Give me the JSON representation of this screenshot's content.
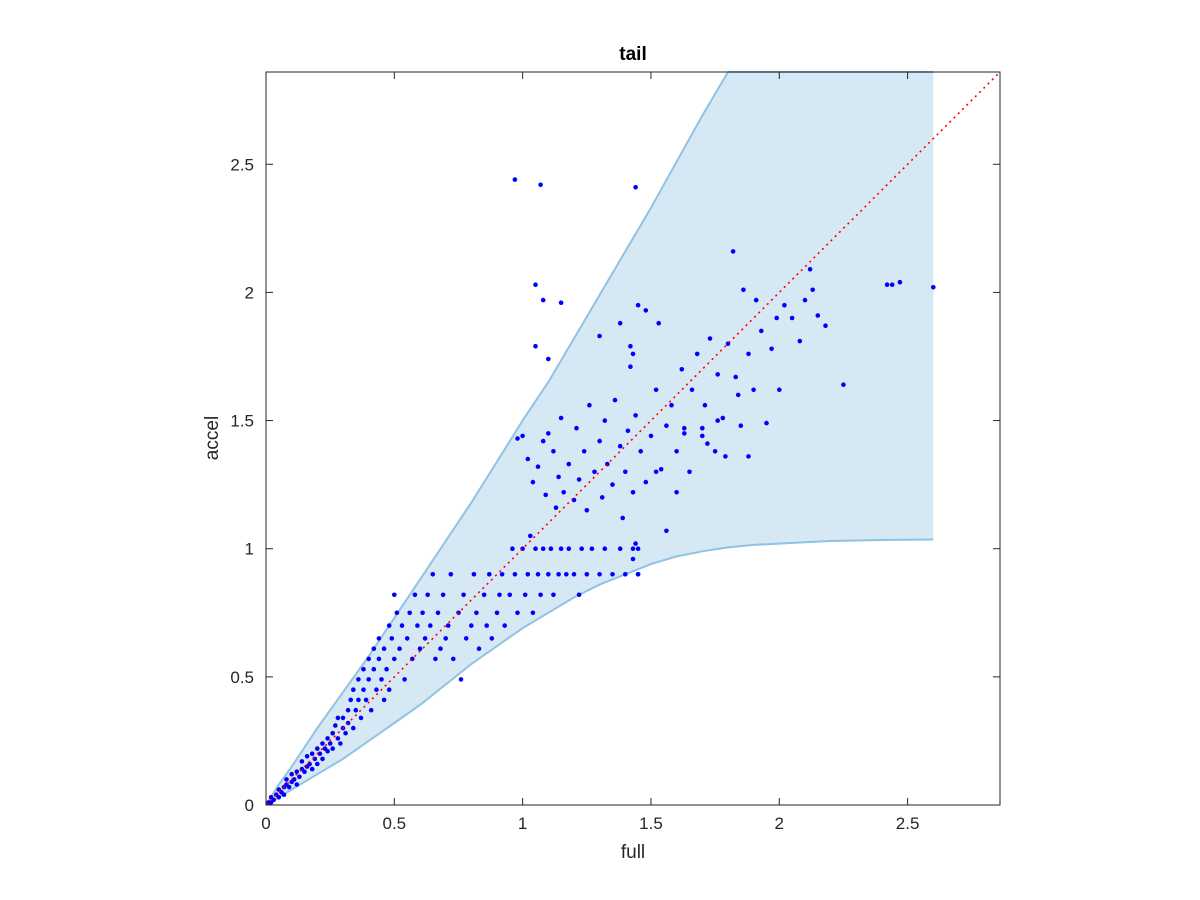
{
  "chart_data": {
    "type": "scatter",
    "title": "tail",
    "xlabel": "full",
    "ylabel": "accel",
    "xlim": [
      0,
      2.86
    ],
    "ylim": [
      0,
      2.86
    ],
    "xticks": [
      0,
      0.5,
      1,
      1.5,
      2,
      2.5
    ],
    "yticks": [
      0,
      0.5,
      1,
      1.5,
      2,
      2.5
    ],
    "xtick_labels": [
      "0",
      "0.5",
      "1",
      "1.5",
      "2",
      "2.5"
    ],
    "ytick_labels": [
      "0",
      "0.5",
      "1",
      "1.5",
      "2",
      "2.5"
    ],
    "grid": false,
    "colors": {
      "points": "#0000ff",
      "band_fill": "#d6e8f4",
      "band_edge": "#8fc3e3",
      "reference_line": "#ff0000",
      "axes": "#262626"
    },
    "band": {
      "x": [
        0,
        0.05,
        0.1,
        0.2,
        0.3,
        0.4,
        0.5,
        0.6,
        0.7,
        0.8,
        0.9,
        1.0,
        1.1,
        1.2,
        1.3,
        1.4,
        1.5,
        1.6,
        1.7,
        1.8,
        1.9,
        2.0,
        2.1,
        2.2,
        2.3,
        2.4,
        2.5,
        2.6
      ],
      "upper": [
        0,
        0.08,
        0.15,
        0.3,
        0.44,
        0.58,
        0.73,
        0.88,
        1.03,
        1.18,
        1.34,
        1.5,
        1.65,
        1.82,
        1.99,
        2.16,
        2.33,
        2.51,
        2.69,
        2.87,
        2.86,
        2.86,
        2.86,
        2.86,
        2.86,
        2.86,
        2.86,
        2.86
      ],
      "lower": [
        0,
        0.03,
        0.06,
        0.12,
        0.18,
        0.25,
        0.32,
        0.39,
        0.47,
        0.55,
        0.62,
        0.69,
        0.75,
        0.81,
        0.86,
        0.9,
        0.94,
        0.97,
        0.99,
        1.005,
        1.015,
        1.02,
        1.025,
        1.03,
        1.032,
        1.034,
        1.035,
        1.036
      ]
    },
    "reference_line": {
      "style": "dotted",
      "x": [
        0,
        2.86
      ],
      "y": [
        0,
        2.86
      ]
    },
    "series": [
      {
        "points": [
          [
            0.01,
            0.01
          ],
          [
            0.02,
            0.01
          ],
          [
            0.02,
            0.03
          ],
          [
            0.03,
            0.02
          ],
          [
            0.04,
            0.04
          ],
          [
            0.05,
            0.03
          ],
          [
            0.05,
            0.06
          ],
          [
            0.06,
            0.05
          ],
          [
            0.07,
            0.07
          ],
          [
            0.07,
            0.04
          ],
          [
            0.08,
            0.08
          ],
          [
            0.08,
            0.1
          ],
          [
            0.09,
            0.07
          ],
          [
            0.1,
            0.09
          ],
          [
            0.1,
            0.12
          ],
          [
            0.11,
            0.1
          ],
          [
            0.12,
            0.13
          ],
          [
            0.12,
            0.08
          ],
          [
            0.13,
            0.11
          ],
          [
            0.14,
            0.14
          ],
          [
            0.14,
            0.17
          ],
          [
            0.15,
            0.13
          ],
          [
            0.16,
            0.15
          ],
          [
            0.16,
            0.19
          ],
          [
            0.17,
            0.16
          ],
          [
            0.18,
            0.14
          ],
          [
            0.18,
            0.2
          ],
          [
            0.19,
            0.18
          ],
          [
            0.2,
            0.22
          ],
          [
            0.2,
            0.16
          ],
          [
            0.21,
            0.2
          ],
          [
            0.22,
            0.24
          ],
          [
            0.22,
            0.18
          ],
          [
            0.23,
            0.22
          ],
          [
            0.24,
            0.26
          ],
          [
            0.24,
            0.21
          ],
          [
            0.25,
            0.24
          ],
          [
            0.26,
            0.28
          ],
          [
            0.26,
            0.22
          ],
          [
            0.27,
            0.31
          ],
          [
            0.28,
            0.26
          ],
          [
            0.28,
            0.34
          ],
          [
            0.29,
            0.24
          ],
          [
            0.3,
            0.3
          ],
          [
            0.3,
            0.34
          ],
          [
            0.31,
            0.28
          ],
          [
            0.32,
            0.37
          ],
          [
            0.32,
            0.32
          ],
          [
            0.33,
            0.41
          ],
          [
            0.34,
            0.3
          ],
          [
            0.34,
            0.45
          ],
          [
            0.35,
            0.37
          ],
          [
            0.36,
            0.41
          ],
          [
            0.36,
            0.49
          ],
          [
            0.37,
            0.34
          ],
          [
            0.38,
            0.45
          ],
          [
            0.38,
            0.53
          ],
          [
            0.39,
            0.41
          ],
          [
            0.4,
            0.49
          ],
          [
            0.4,
            0.57
          ],
          [
            0.41,
            0.37
          ],
          [
            0.42,
            0.53
          ],
          [
            0.42,
            0.61
          ],
          [
            0.43,
            0.45
          ],
          [
            0.44,
            0.57
          ],
          [
            0.44,
            0.65
          ],
          [
            0.45,
            0.49
          ],
          [
            0.46,
            0.41
          ],
          [
            0.46,
            0.61
          ],
          [
            0.47,
            0.53
          ],
          [
            0.48,
            0.7
          ],
          [
            0.48,
            0.45
          ],
          [
            0.49,
            0.65
          ],
          [
            0.5,
            0.57
          ],
          [
            0.5,
            0.82
          ],
          [
            0.51,
            0.75
          ],
          [
            0.52,
            0.61
          ],
          [
            0.53,
            0.7
          ],
          [
            0.54,
            0.49
          ],
          [
            0.55,
            0.65
          ],
          [
            0.56,
            0.75
          ],
          [
            0.57,
            0.57
          ],
          [
            0.58,
            0.82
          ],
          [
            0.59,
            0.7
          ],
          [
            0.6,
            0.61
          ],
          [
            0.61,
            0.75
          ],
          [
            0.62,
            0.65
          ],
          [
            0.63,
            0.82
          ],
          [
            0.64,
            0.7
          ],
          [
            0.65,
            0.9
          ],
          [
            0.66,
            0.57
          ],
          [
            0.67,
            0.75
          ],
          [
            0.68,
            0.61
          ],
          [
            0.69,
            0.82
          ],
          [
            0.7,
            0.65
          ],
          [
            0.71,
            0.7
          ],
          [
            0.72,
            0.9
          ],
          [
            0.73,
            0.57
          ],
          [
            0.75,
            0.75
          ],
          [
            0.76,
            0.49
          ],
          [
            0.77,
            0.82
          ],
          [
            0.78,
            0.65
          ],
          [
            0.8,
            0.7
          ],
          [
            0.81,
            0.9
          ],
          [
            0.82,
            0.75
          ],
          [
            0.83,
            0.61
          ],
          [
            0.85,
            0.82
          ],
          [
            0.86,
            0.7
          ],
          [
            0.87,
            0.9
          ],
          [
            0.88,
            0.65
          ],
          [
            0.9,
            0.75
          ],
          [
            0.91,
            0.82
          ],
          [
            0.92,
            0.9
          ],
          [
            0.93,
            0.7
          ],
          [
            0.95,
            0.82
          ],
          [
            0.96,
            1.0
          ],
          [
            0.97,
            0.9
          ],
          [
            0.98,
            0.75
          ],
          [
            1.0,
            1.0
          ],
          [
            1.01,
            0.82
          ],
          [
            1.02,
            0.9
          ],
          [
            1.03,
            1.05
          ],
          [
            1.04,
            0.75
          ],
          [
            1.05,
            1.0
          ],
          [
            1.06,
            0.9
          ],
          [
            1.07,
            0.82
          ],
          [
            1.08,
            1.0
          ],
          [
            1.1,
            0.9
          ],
          [
            1.11,
            1.0
          ],
          [
            1.12,
            0.82
          ],
          [
            1.14,
            0.9
          ],
          [
            1.15,
            1.0
          ],
          [
            1.17,
            0.9
          ],
          [
            1.18,
            1.0
          ],
          [
            1.2,
            0.9
          ],
          [
            1.22,
            0.82
          ],
          [
            1.23,
            1.0
          ],
          [
            1.25,
            0.9
          ],
          [
            1.27,
            1.0
          ],
          [
            1.3,
            0.9
          ],
          [
            1.32,
            1.0
          ],
          [
            1.35,
            0.9
          ],
          [
            1.38,
            1.0
          ],
          [
            1.4,
            0.9
          ],
          [
            1.43,
            1.0
          ],
          [
            1.45,
            0.9
          ],
          [
            0.97,
            2.44
          ],
          [
            1.07,
            2.42
          ],
          [
            1.44,
            2.41
          ],
          [
            1.05,
            2.03
          ],
          [
            1.08,
            1.97
          ],
          [
            1.15,
            1.96
          ],
          [
            1.05,
            1.79
          ],
          [
            1.1,
            1.74
          ],
          [
            1.0,
            1.44
          ],
          [
            0.98,
            1.43
          ],
          [
            1.45,
            1.95
          ],
          [
            1.48,
            1.93
          ],
          [
            1.53,
            1.88
          ],
          [
            1.38,
            1.88
          ],
          [
            1.3,
            1.83
          ],
          [
            1.42,
            1.79
          ],
          [
            1.43,
            1.76
          ],
          [
            1.42,
            1.71
          ],
          [
            1.02,
            1.35
          ],
          [
            1.04,
            1.26
          ],
          [
            1.06,
            1.32
          ],
          [
            1.08,
            1.42
          ],
          [
            1.09,
            1.21
          ],
          [
            1.1,
            1.45
          ],
          [
            1.12,
            1.38
          ],
          [
            1.13,
            1.16
          ],
          [
            1.14,
            1.28
          ],
          [
            1.15,
            1.51
          ],
          [
            1.16,
            1.22
          ],
          [
            1.18,
            1.33
          ],
          [
            1.2,
            1.19
          ],
          [
            1.21,
            1.47
          ],
          [
            1.22,
            1.27
          ],
          [
            1.24,
            1.38
          ],
          [
            1.25,
            1.15
          ],
          [
            1.26,
            1.56
          ],
          [
            1.28,
            1.3
          ],
          [
            1.3,
            1.42
          ],
          [
            1.31,
            1.2
          ],
          [
            1.32,
            1.5
          ],
          [
            1.33,
            1.33
          ],
          [
            1.35,
            1.25
          ],
          [
            1.36,
            1.58
          ],
          [
            1.38,
            1.4
          ],
          [
            1.39,
            1.12
          ],
          [
            1.4,
            1.3
          ],
          [
            1.41,
            1.46
          ],
          [
            1.43,
            1.22
          ],
          [
            1.44,
            1.52
          ],
          [
            1.46,
            1.38
          ],
          [
            1.48,
            1.26
          ],
          [
            1.5,
            1.44
          ],
          [
            1.52,
            1.62
          ],
          [
            1.54,
            1.31
          ],
          [
            1.56,
            1.48
          ],
          [
            1.58,
            1.56
          ],
          [
            1.6,
            1.38
          ],
          [
            1.62,
            1.7
          ],
          [
            1.63,
            1.47
          ],
          [
            1.65,
            1.3
          ],
          [
            1.66,
            1.62
          ],
          [
            1.68,
            1.76
          ],
          [
            1.7,
            1.44
          ],
          [
            1.71,
            1.56
          ],
          [
            1.73,
            1.82
          ],
          [
            1.75,
            1.38
          ],
          [
            1.76,
            1.68
          ],
          [
            1.78,
            1.51
          ],
          [
            1.8,
            1.8
          ],
          [
            1.82,
            2.16
          ],
          [
            1.83,
            1.67
          ],
          [
            1.85,
            1.48
          ],
          [
            1.86,
            2.01
          ],
          [
            1.88,
            1.76
          ],
          [
            1.9,
            1.62
          ],
          [
            1.91,
            1.97
          ],
          [
            1.93,
            1.85
          ],
          [
            1.95,
            1.49
          ],
          [
            1.97,
            1.78
          ],
          [
            1.99,
            1.9
          ],
          [
            2.0,
            1.62
          ],
          [
            2.02,
            1.95
          ],
          [
            2.05,
            1.9
          ],
          [
            2.08,
            1.81
          ],
          [
            2.1,
            1.97
          ],
          [
            2.12,
            2.09
          ],
          [
            2.13,
            2.01
          ],
          [
            2.15,
            1.91
          ],
          [
            2.18,
            1.87
          ],
          [
            2.25,
            1.64
          ],
          [
            2.42,
            2.03
          ],
          [
            2.44,
            2.03
          ],
          [
            2.47,
            2.04
          ],
          [
            2.6,
            2.02
          ],
          [
            1.44,
            1.02
          ],
          [
            1.45,
            1.0
          ],
          [
            1.43,
            0.96
          ],
          [
            1.45,
            0.9
          ],
          [
            1.52,
            1.3
          ],
          [
            1.56,
            1.07
          ],
          [
            1.6,
            1.22
          ],
          [
            1.63,
            1.45
          ],
          [
            1.7,
            1.47
          ],
          [
            1.72,
            1.41
          ],
          [
            1.76,
            1.5
          ],
          [
            1.79,
            1.36
          ],
          [
            1.84,
            1.6
          ],
          [
            1.88,
            1.36
          ]
        ]
      }
    ]
  }
}
